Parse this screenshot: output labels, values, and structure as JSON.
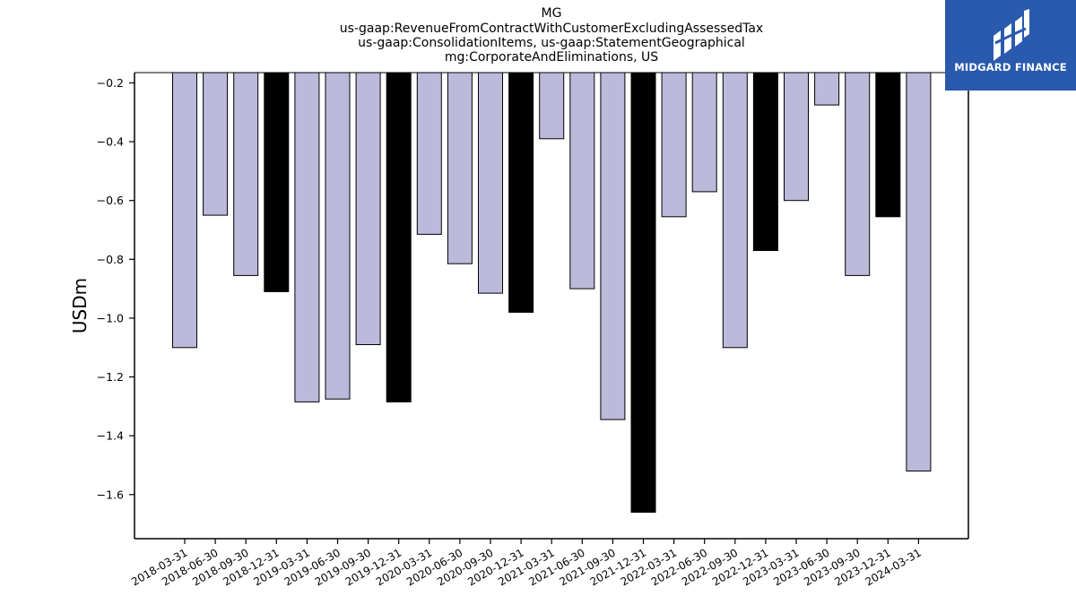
{
  "brand": {
    "name": "MIDGARD FINANCE",
    "bg_color": "#2a5aad",
    "icon": "midgard-logo-icon"
  },
  "chart_data": {
    "type": "bar",
    "title_lines": [
      "MG",
      "us-gaap:RevenueFromContractWithCustomerExcludingAssessedTax",
      "us-gaap:ConsolidationItems, us-gaap:StatementGeographical",
      "mg:CorporateAndEliminations, US"
    ],
    "xlabel": "",
    "ylabel": "USDm",
    "ylim": [
      -1.75,
      -0.165
    ],
    "yticks": [
      -1.6,
      -1.4,
      -1.2,
      -1.0,
      -0.8,
      -0.6,
      -0.4,
      -0.2
    ],
    "ytick_labels": [
      "−1.6",
      "−1.4",
      "−1.2",
      "−1.0",
      "−0.8",
      "−0.6",
      "−0.4",
      "−0.2"
    ],
    "categories": [
      "2018-03-31",
      "2018-06-30",
      "2018-09-30",
      "2018-12-31",
      "2019-03-31",
      "2019-06-30",
      "2019-09-30",
      "2019-12-31",
      "2020-03-31",
      "2020-06-30",
      "2020-09-30",
      "2020-12-31",
      "2021-03-31",
      "2021-06-30",
      "2021-09-30",
      "2021-12-31",
      "2022-03-31",
      "2022-06-30",
      "2022-09-30",
      "2022-12-31",
      "2023-03-31",
      "2023-06-30",
      "2023-09-30",
      "2023-12-31",
      "2024-03-31"
    ],
    "values": [
      -1.1,
      -0.65,
      -0.855,
      -0.91,
      -1.285,
      -1.275,
      -1.09,
      -1.285,
      -0.715,
      -0.815,
      -0.915,
      -0.98,
      -0.39,
      -0.9,
      -1.345,
      -1.66,
      -0.655,
      -0.57,
      -1.1,
      -0.77,
      -0.6,
      -0.275,
      -0.855,
      -0.655,
      -1.52
    ],
    "colors": {
      "quarter": "#bcbadb",
      "year_end": "#000000",
      "edge": "#000000"
    },
    "grid": false,
    "legend": "none"
  }
}
